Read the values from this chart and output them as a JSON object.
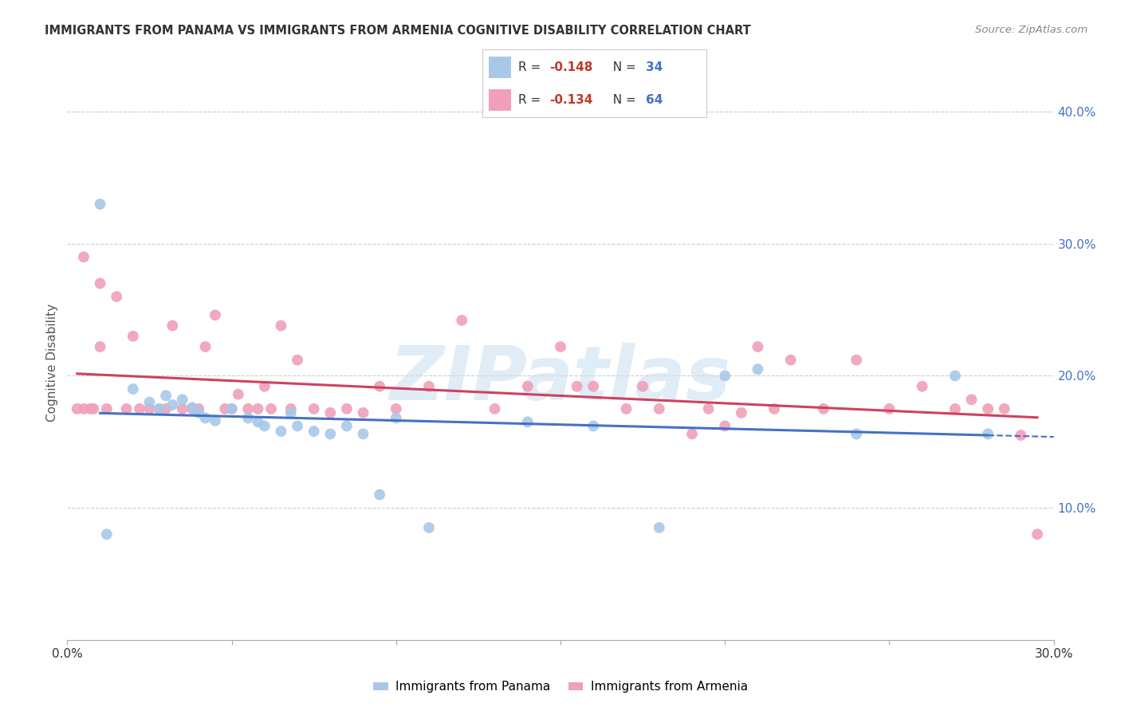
{
  "title": "IMMIGRANTS FROM PANAMA VS IMMIGRANTS FROM ARMENIA COGNITIVE DISABILITY CORRELATION CHART",
  "source": "Source: ZipAtlas.com",
  "ylabel": "Cognitive Disability",
  "legend_label1": "Immigrants from Panama",
  "legend_label2": "Immigrants from Armenia",
  "panama_color": "#a8c8e8",
  "armenia_color": "#f0a0b8",
  "panama_line_color": "#4472c4",
  "armenia_line_color": "#d04060",
  "x_min": 0.0,
  "x_max": 0.3,
  "y_min": 0.0,
  "y_max": 0.42,
  "y_ticks": [
    0.1,
    0.2,
    0.3,
    0.4
  ],
  "y_tick_labels": [
    "10.0%",
    "20.0%",
    "30.0%",
    "40.0%"
  ],
  "panama_R": -0.148,
  "panama_N": 34,
  "armenia_R": -0.134,
  "armenia_N": 64,
  "panama_scatter_x": [
    0.01,
    0.012,
    0.02,
    0.025,
    0.028,
    0.03,
    0.032,
    0.035,
    0.038,
    0.04,
    0.042,
    0.045,
    0.05,
    0.055,
    0.058,
    0.06,
    0.065,
    0.068,
    0.07,
    0.075,
    0.08,
    0.085,
    0.09,
    0.095,
    0.1,
    0.11,
    0.14,
    0.16,
    0.18,
    0.2,
    0.21,
    0.24,
    0.27,
    0.28
  ],
  "panama_scatter_y": [
    0.33,
    0.08,
    0.19,
    0.18,
    0.175,
    0.185,
    0.178,
    0.182,
    0.176,
    0.172,
    0.168,
    0.166,
    0.175,
    0.168,
    0.165,
    0.162,
    0.158,
    0.172,
    0.162,
    0.158,
    0.156,
    0.162,
    0.156,
    0.11,
    0.168,
    0.085,
    0.165,
    0.162,
    0.085,
    0.2,
    0.205,
    0.156,
    0.2,
    0.156
  ],
  "armenia_scatter_x": [
    0.003,
    0.005,
    0.007,
    0.008,
    0.01,
    0.012,
    0.015,
    0.018,
    0.02,
    0.022,
    0.025,
    0.028,
    0.03,
    0.032,
    0.035,
    0.038,
    0.04,
    0.042,
    0.045,
    0.048,
    0.05,
    0.052,
    0.055,
    0.058,
    0.06,
    0.062,
    0.065,
    0.068,
    0.07,
    0.075,
    0.08,
    0.085,
    0.09,
    0.095,
    0.1,
    0.11,
    0.12,
    0.13,
    0.14,
    0.15,
    0.155,
    0.16,
    0.17,
    0.175,
    0.18,
    0.19,
    0.195,
    0.2,
    0.205,
    0.21,
    0.215,
    0.22,
    0.23,
    0.24,
    0.25,
    0.26,
    0.27,
    0.275,
    0.28,
    0.285,
    0.29,
    0.295,
    0.005,
    0.01
  ],
  "armenia_scatter_y": [
    0.175,
    0.29,
    0.175,
    0.175,
    0.27,
    0.175,
    0.26,
    0.175,
    0.23,
    0.175,
    0.175,
    0.175,
    0.175,
    0.238,
    0.175,
    0.175,
    0.175,
    0.222,
    0.246,
    0.175,
    0.175,
    0.186,
    0.175,
    0.175,
    0.192,
    0.175,
    0.238,
    0.175,
    0.212,
    0.175,
    0.172,
    0.175,
    0.172,
    0.192,
    0.175,
    0.192,
    0.242,
    0.175,
    0.192,
    0.222,
    0.192,
    0.192,
    0.175,
    0.192,
    0.175,
    0.156,
    0.175,
    0.162,
    0.172,
    0.222,
    0.175,
    0.212,
    0.175,
    0.212,
    0.175,
    0.192,
    0.175,
    0.182,
    0.175,
    0.175,
    0.155,
    0.08,
    0.175,
    0.222
  ],
  "watermark_text": "ZIPatlas",
  "watermark_color": "#cce0f0",
  "watermark_alpha": 0.6
}
